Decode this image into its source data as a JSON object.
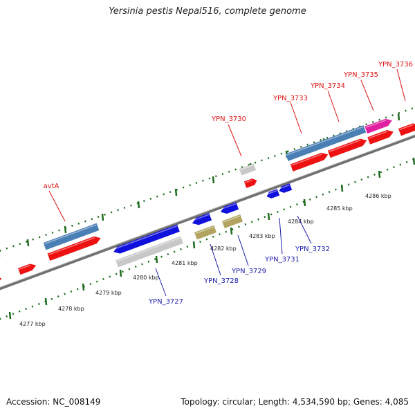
{
  "title": "Yersinia pestis Nepal516, complete genome",
  "footer": {
    "accession": "Accession: NC_008149",
    "summary": "Topology: circular; Length: 4,534,590 bp; Genes: 4,085"
  },
  "colors": {
    "forward_gene": "#ee1111",
    "reverse_gene": "#1111dd",
    "steelblue_gene": "#4a7fb5",
    "grey_gene": "#c8c8c8",
    "khaki_gene": "#b0a460",
    "magenta_gene": "#e020a0",
    "backbone": "#808080",
    "tick": "#1e6b1e",
    "fwd_label": "#dd1111",
    "rev_label": "#1a1aaa"
  },
  "scale": {
    "unit": "kbp",
    "ticks": [
      "4277 kbp",
      "4278 kbp",
      "4279 kbp",
      "4280 kbp",
      "4281 kbp",
      "4282 kbp",
      "4283 kbp",
      "4284 kbp",
      "4285 kbp",
      "4286 kbp"
    ]
  },
  "gene_labels": [
    {
      "text": "avtA",
      "strand": "forward"
    },
    {
      "text": "YPN_3730",
      "strand": "forward"
    },
    {
      "text": "YPN_3733",
      "strand": "forward"
    },
    {
      "text": "YPN_3734",
      "strand": "forward"
    },
    {
      "text": "YPN_3735",
      "strand": "forward"
    },
    {
      "text": "YPN_3736",
      "strand": "forward"
    },
    {
      "text": "YPN_3727",
      "strand": "reverse"
    },
    {
      "text": "YPN_3728",
      "strand": "reverse"
    },
    {
      "text": "YPN_3729",
      "strand": "reverse"
    },
    {
      "text": "YPN_3731",
      "strand": "reverse"
    },
    {
      "text": "YPN_3732",
      "strand": "reverse"
    }
  ]
}
